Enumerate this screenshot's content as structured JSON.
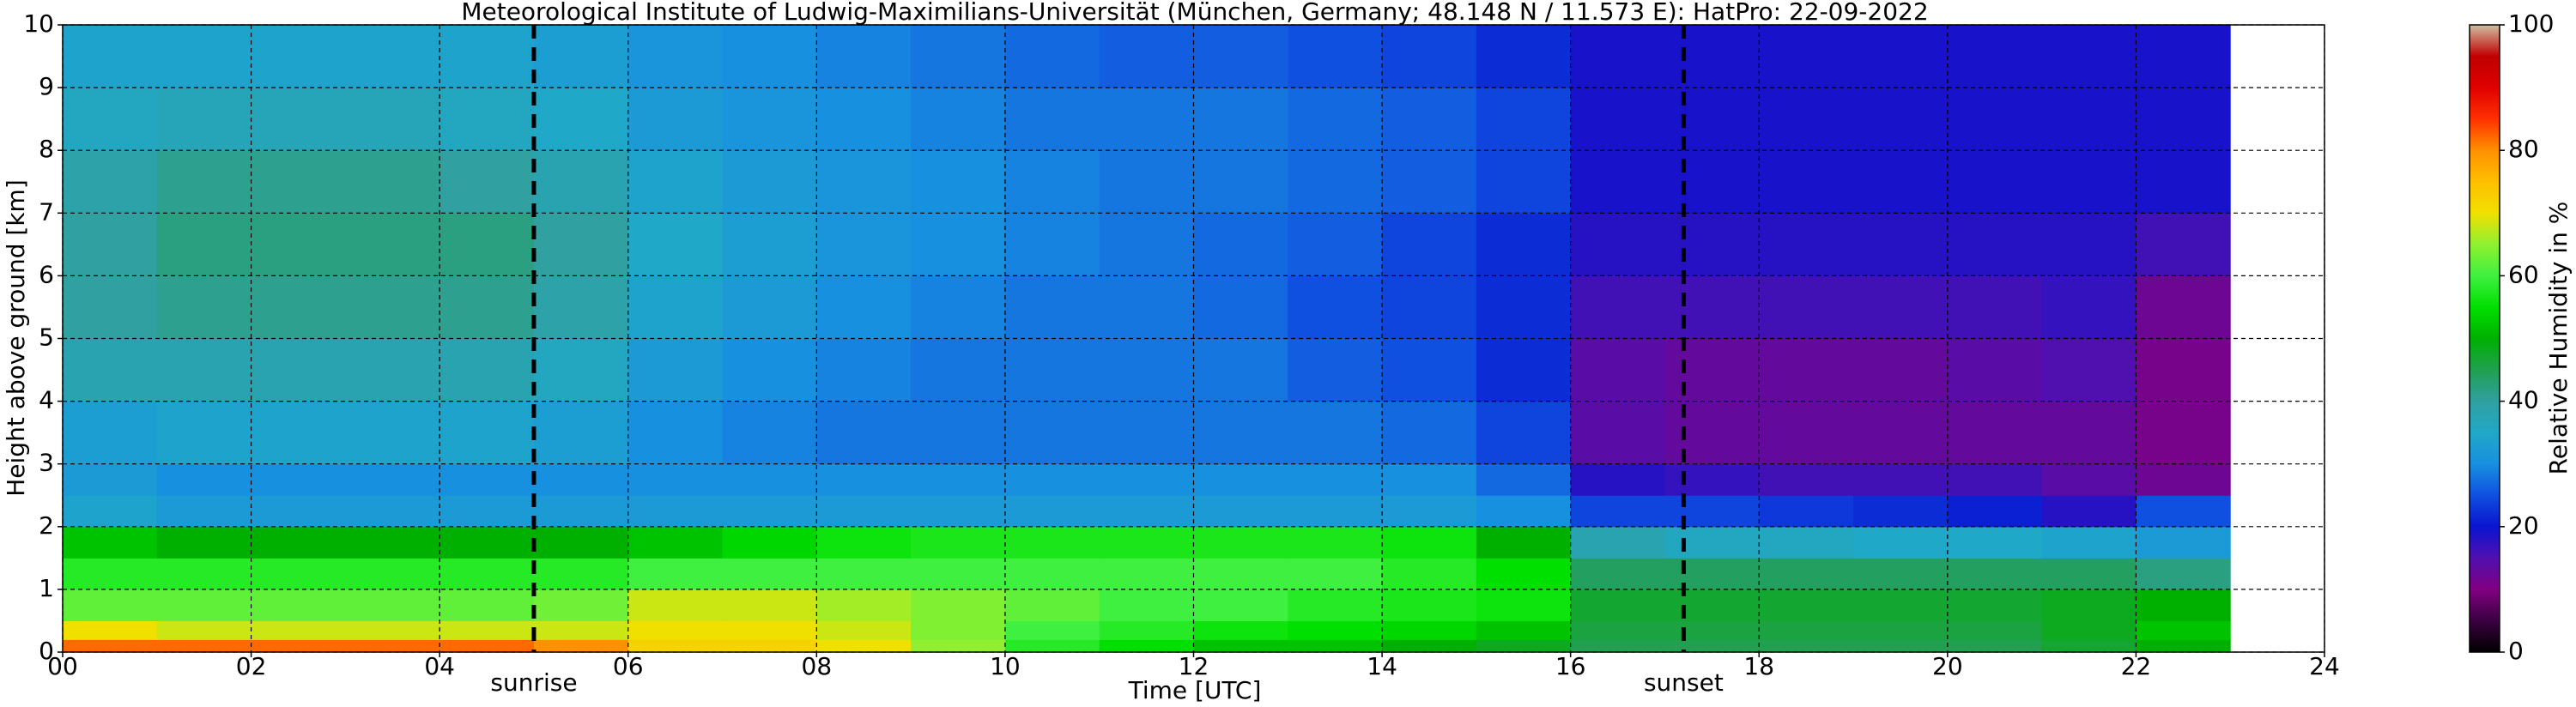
{
  "chart_data": {
    "type": "heatmap",
    "title": "Meteorological Institute of Ludwig-Maximilians-Universität (München, Germany; 48.148 N / 11.573 E):    HatPro: 22-09-2022",
    "xlabel": "Time [UTC]",
    "ylabel": "Height above ground [km]",
    "colorbar_label": "Relative Humidity in %",
    "x": [
      0,
      1,
      2,
      3,
      4,
      5,
      6,
      7,
      8,
      9,
      10,
      11,
      12,
      13,
      14,
      15,
      16,
      17,
      18,
      19,
      20,
      21,
      22,
      23
    ],
    "y": [
      0,
      0.2,
      0.5,
      1,
      1.5,
      2,
      2.5,
      3,
      4,
      5,
      6,
      7,
      8,
      9,
      10
    ],
    "values": [
      [
        82,
        82,
        82,
        82,
        82,
        80,
        72,
        72,
        70,
        65,
        58,
        55,
        52,
        52,
        50,
        48,
        45,
        45,
        45,
        45,
        45,
        47,
        50
      ],
      [
        70,
        68,
        68,
        68,
        68,
        68,
        70,
        70,
        68,
        64,
        60,
        58,
        56,
        55,
        54,
        52,
        46,
        46,
        46,
        46,
        46,
        48,
        52
      ],
      [
        62,
        62,
        62,
        62,
        62,
        63,
        68,
        68,
        66,
        64,
        62,
        60,
        60,
        58,
        57,
        56,
        47,
        47,
        47,
        47,
        47,
        48,
        50
      ],
      [
        58,
        58,
        58,
        58,
        58,
        58,
        60,
        60,
        60,
        60,
        60,
        60,
        60,
        60,
        58,
        55,
        44,
        44,
        44,
        44,
        44,
        44,
        42
      ],
      [
        52,
        50,
        50,
        50,
        50,
        50,
        52,
        54,
        56,
        57,
        57,
        57,
        57,
        57,
        56,
        50,
        38,
        36,
        36,
        35,
        35,
        34,
        32
      ],
      [
        34,
        32,
        32,
        32,
        32,
        32,
        32,
        32,
        32,
        32,
        32,
        32,
        32,
        32,
        32,
        30,
        24,
        24,
        23,
        22,
        21,
        18,
        25
      ],
      [
        32,
        30,
        30,
        30,
        30,
        30,
        30,
        30,
        30,
        30,
        30,
        30,
        30,
        30,
        30,
        27,
        18,
        17,
        16,
        16,
        16,
        14,
        12
      ],
      [
        33,
        34,
        34,
        34,
        34,
        33,
        30,
        29,
        28,
        28,
        28,
        28,
        28,
        28,
        27,
        24,
        14,
        13,
        13,
        13,
        13,
        13,
        11
      ],
      [
        38,
        38,
        38,
        38,
        38,
        36,
        32,
        30,
        29,
        28,
        28,
        28,
        28,
        26,
        25,
        22,
        14,
        13,
        13,
        13,
        14,
        15,
        11
      ],
      [
        40,
        41,
        41,
        41,
        41,
        39,
        34,
        32,
        30,
        29,
        28,
        28,
        27,
        25,
        24,
        22,
        16,
        16,
        16,
        16,
        16,
        17,
        12
      ],
      [
        40,
        42,
        42,
        42,
        42,
        40,
        35,
        33,
        31,
        30,
        29,
        28,
        27,
        26,
        24,
        22,
        18,
        18,
        18,
        18,
        18,
        18,
        16
      ],
      [
        39,
        41,
        41,
        41,
        40,
        38,
        34,
        32,
        31,
        30,
        29,
        28,
        28,
        27,
        26,
        24,
        19,
        19,
        19,
        19,
        19,
        19,
        19
      ],
      [
        36,
        37,
        37,
        37,
        36,
        35,
        32,
        31,
        30,
        29,
        28,
        28,
        28,
        27,
        26,
        24,
        19,
        19,
        19,
        19,
        19,
        19,
        19
      ],
      [
        34,
        34,
        34,
        34,
        34,
        33,
        31,
        30,
        29,
        28,
        27,
        26,
        26,
        25,
        24,
        22,
        19,
        19,
        19,
        19,
        19,
        19,
        19
      ]
    ],
    "colors": [
      "#000000",
      "#3a0040",
      "#800080",
      "#5010b0",
      "#0a14d0",
      "#1050e0",
      "#1890e0",
      "#20a8c8",
      "#30a0a0",
      "#20a050",
      "#00b000",
      "#00e000",
      "#40f040",
      "#90f030",
      "#f0e000",
      "#ffc000",
      "#ff9000",
      "#ff3000",
      "#e00000",
      "#c00000",
      "#d0c0a0"
    ],
    "xlim": [
      0,
      24
    ],
    "ylim": [
      0,
      10
    ],
    "zlim": [
      0,
      100
    ],
    "xticks": [
      {
        "value": 0,
        "label": "00"
      },
      {
        "value": 2,
        "label": "02"
      },
      {
        "value": 4,
        "label": "04"
      },
      {
        "value": 6,
        "label": "06"
      },
      {
        "value": 8,
        "label": "08"
      },
      {
        "value": 10,
        "label": "10"
      },
      {
        "value": 12,
        "label": "12"
      },
      {
        "value": 14,
        "label": "14"
      },
      {
        "value": 16,
        "label": "16"
      },
      {
        "value": 18,
        "label": "18"
      },
      {
        "value": 20,
        "label": "20"
      },
      {
        "value": 22,
        "label": "22"
      },
      {
        "value": 24,
        "label": "24"
      }
    ],
    "yticks": [
      0,
      1,
      2,
      3,
      4,
      5,
      6,
      7,
      8,
      9,
      10
    ],
    "zticks": [
      0,
      20,
      40,
      60,
      80,
      100
    ],
    "grid": true,
    "vlines": [
      {
        "x": 5.0,
        "label": "sunrise"
      },
      {
        "x": 17.2,
        "label": "sunset"
      }
    ]
  }
}
